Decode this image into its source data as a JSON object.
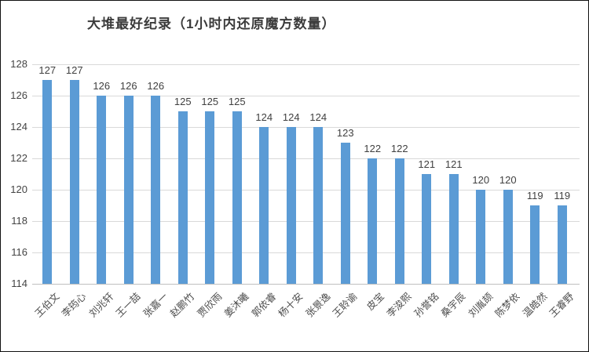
{
  "chart_data": {
    "type": "bar",
    "title": "大堆最好纪录（1小时内还原魔方数量）",
    "categories": [
      "王伯文",
      "李筠心",
      "刘兆轩",
      "王一喆",
      "张嘉一",
      "赵鹏竹",
      "贾欣雨",
      "姜沐曦",
      "郭依睿",
      "杨十安",
      "张景逸",
      "王聆谕",
      "皮宝",
      "李浚熙",
      "孙誉铭",
      "桑宇辰",
      "刘胤颉",
      "陈梦依",
      "温皓然",
      "王睿野"
    ],
    "values": [
      127,
      127,
      126,
      126,
      126,
      125,
      125,
      125,
      124,
      124,
      124,
      123,
      122,
      122,
      121,
      121,
      120,
      120,
      119,
      119
    ],
    "xlabel": "",
    "ylabel": "",
    "ylim": [
      114,
      128
    ],
    "yticks": [
      114,
      116,
      118,
      120,
      122,
      124,
      126,
      128
    ],
    "grid": true,
    "legend_position": "none",
    "data_labels": true,
    "colors": {
      "bar": "#5B9BD5",
      "gridline": "#D9D9D9",
      "axis_line": "#BFBFBF",
      "tick_text": "#444444",
      "value_text": "#404040",
      "category_text": "#4D4D4D",
      "title_text": "#3B3B3B",
      "background": "#FFFFFF",
      "frame_border": "#111111"
    }
  }
}
